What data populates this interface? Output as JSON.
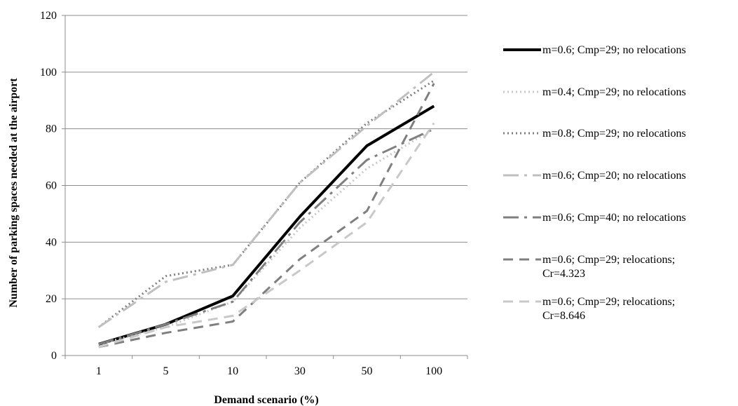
{
  "chart_data": {
    "type": "line",
    "title": "",
    "xlabel": "Demand scenario (%)",
    "ylabel": "Number of parking spaces needed at the airport",
    "categories": [
      "1",
      "5",
      "10",
      "30",
      "50",
      "100"
    ],
    "ylim": [
      0,
      120
    ],
    "yticks": [
      0,
      20,
      40,
      60,
      80,
      100,
      120
    ],
    "grid": "horizontal",
    "legend_position": "right",
    "series": [
      {
        "name": "m=0.6; Cmp=29; no relocations",
        "values": [
          4,
          11,
          21,
          49,
          74,
          88
        ],
        "color": "#000000",
        "style": "solid"
      },
      {
        "name": "m=0.4; Cmp=29; no relocations",
        "values": [
          4,
          10,
          19,
          45,
          66,
          80
        ],
        "color": "#c8c8c8",
        "style": "dotted"
      },
      {
        "name": "m=0.8; Cmp=29; no relocations",
        "values": [
          10,
          28,
          32,
          61,
          82,
          97
        ],
        "color": "#7f7f7f",
        "style": "dotted"
      },
      {
        "name": "m=0.6; Cmp=20; no relocations",
        "values": [
          10,
          26,
          32,
          61,
          81,
          100
        ],
        "color": "#bfbfbf",
        "style": "dashdot"
      },
      {
        "name": "m=0.6; Cmp=40; no relocations",
        "values": [
          4,
          11,
          19,
          47,
          69,
          80
        ],
        "color": "#7f7f7f",
        "style": "dashdot"
      },
      {
        "name": "m=0.6; Cmp=29; relocations; Cr=4.323",
        "values": [
          3,
          8,
          12,
          34,
          51,
          96
        ],
        "color": "#7f7f7f",
        "style": "dashed"
      },
      {
        "name": "m=0.6; Cmp=29; relocations; Cr=8.646",
        "values": [
          3,
          10,
          14,
          30,
          47,
          82
        ],
        "color": "#c8c8c8",
        "style": "dashed"
      }
    ]
  }
}
